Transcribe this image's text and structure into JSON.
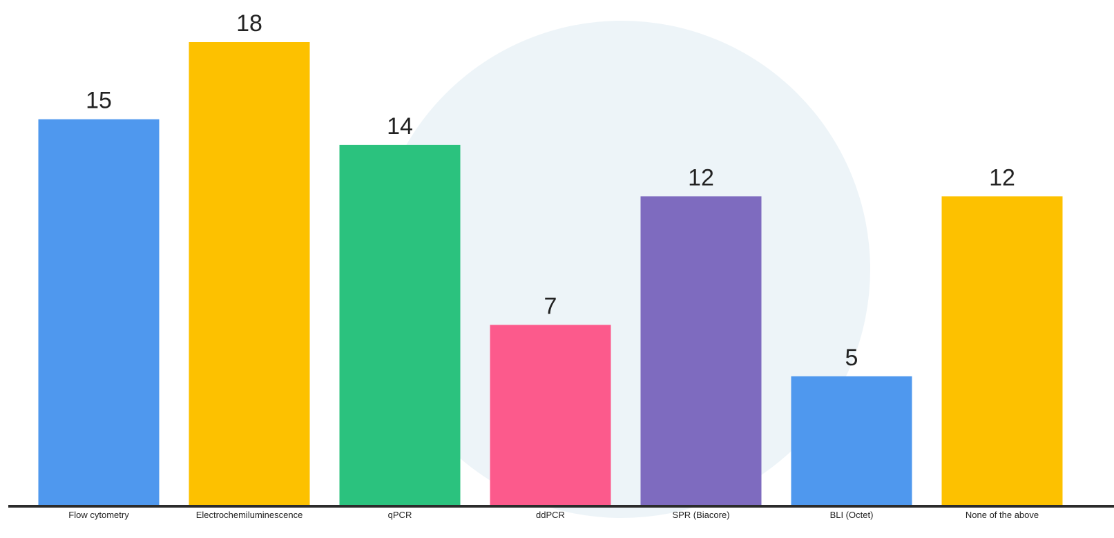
{
  "chart_data": {
    "type": "bar",
    "categories": [
      "Flow cytometry",
      "Electrochemiluminescence",
      "qPCR",
      "ddPCR",
      "SPR (Biacore)",
      "BLI (Octet)",
      "None of the above"
    ],
    "values": [
      15,
      18,
      14,
      7,
      12,
      5,
      12
    ],
    "colors": [
      "#4f98ee",
      "#fdc100",
      "#2bc27e",
      "#fc5a8c",
      "#7e6bbf",
      "#4f98ee",
      "#fdc100"
    ]
  }
}
